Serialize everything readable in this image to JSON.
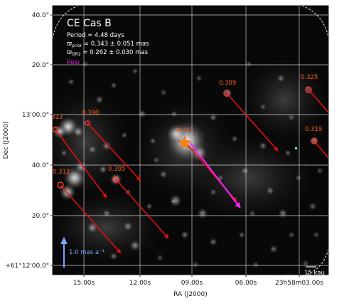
{
  "chart_data": {
    "type": "scatter",
    "title": "CE Cas B",
    "info_lines": {
      "period": "Period =   4.48 days",
      "w_prior_sym": "ϖ",
      "w_prior_sub": "prior",
      "w_prior_val": " = 0.343 ± 0.051 mas",
      "w_dr2_sym": "ϖ",
      "w_dr2_sub": "DR2",
      "w_dr2_val": " = 0.262 ± 0.030 mas",
      "mu_sym": "μ",
      "mu_sub": "DR2"
    },
    "xlabel": "RA (J2000)",
    "ylabel": "Dec (J2000)",
    "xticks": [
      "15.00s",
      "12.00s",
      "09.00s",
      "06.00s",
      "23h58m03.00s"
    ],
    "yticks": [
      "40.0\"",
      "20.0\"",
      "13'00.0\"",
      "40.0\"",
      "20.0\"",
      "+61°12'00.0\""
    ],
    "scale_bar_pm": "1.0 mas a⁻¹",
    "scale_bar_dist": "15 kau",
    "grid": true,
    "colors": {
      "background": "#080808",
      "grid": "#cfcfcf",
      "circles": "#ff3b3b",
      "labels": "#ff5a1a",
      "pm_vectors": "#e01010",
      "dr2_vector": "#ff22ff",
      "star": "#ff8c00",
      "scale": "#7aa7ff"
    },
    "stars": [
      {
        "name": "0.317",
        "parallax": 0.317,
        "target": true
      },
      {
        "name": "0.309",
        "parallax": 0.309
      },
      {
        "name": "0.325",
        "parallax": 0.325
      },
      {
        "name": "0.313",
        "parallax": 0.313
      },
      {
        "name": "0.390",
        "parallax": 0.39
      },
      {
        "name": "0.319",
        "parallax": 0.319
      },
      {
        "name": "0.305",
        "parallax": 0.305
      },
      {
        "name": "0.312",
        "parallax": 0.312
      }
    ]
  }
}
